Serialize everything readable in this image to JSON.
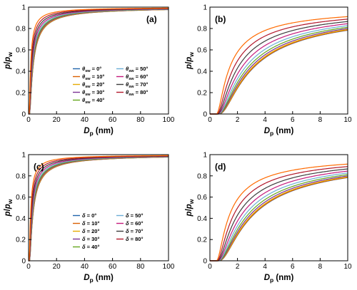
{
  "chart_data": [
    {
      "panel": "(a)",
      "type": "line",
      "xlabel": {
        "main": "D",
        "sub": "p",
        "unit": " (nm)"
      },
      "ylabel": {
        "p1": "p",
        "slash": "/",
        "p2": "p",
        "sub": "w"
      },
      "xlim": [
        0,
        100
      ],
      "ylim": [
        0,
        1
      ],
      "xticks": [
        "0",
        "20",
        "40",
        "60",
        "80",
        "100"
      ],
      "yticks": [
        "0",
        "0.2",
        "0.4",
        "0.6",
        "0.8",
        "1"
      ],
      "legend": {
        "symbol": "θ",
        "sub": "sw",
        "placement": "lower-right"
      },
      "series": [
        {
          "name": " = 0°",
          "color": "#2166ac",
          "factor": 1.0
        },
        {
          "name": " = 10°",
          "color": "#d95f02",
          "factor": 0.985
        },
        {
          "name": " = 20°",
          "color": "#e6ab02",
          "factor": 0.94
        },
        {
          "name": " = 30°",
          "color": "#7b3294",
          "factor": 0.866
        },
        {
          "name": " = 40°",
          "color": "#66a61e",
          "factor": 0.766
        },
        {
          "name": " = 50°",
          "color": "#6baed6",
          "factor": 0.643
        },
        {
          "name": " = 60°",
          "color": "#c51b7d",
          "factor": 0.5
        },
        {
          "name": " = 70°",
          "color": "#3d3d3d",
          "factor": 0.342
        },
        {
          "name": " = 80°",
          "color": "#b2182b",
          "factor": 0.174
        },
        {
          "name": "",
          "color": "#ff6a00",
          "factor": 0.0,
          "legend": false
        }
      ]
    },
    {
      "panel": "(b)",
      "type": "line",
      "xlabel": {
        "main": "D",
        "sub": "p",
        "unit": " (nm)"
      },
      "ylabel": {
        "p1": "p",
        "slash": "/",
        "p2": "p",
        "sub": "w"
      },
      "xlim": [
        0,
        10
      ],
      "ylim": [
        0,
        1
      ],
      "xticks": [
        "0",
        "2",
        "4",
        "6",
        "8",
        "10"
      ],
      "yticks": [
        "0",
        "0.2",
        "0.4",
        "0.6",
        "0.8",
        "1"
      ],
      "series_from": "(a)"
    },
    {
      "panel": "(c)",
      "type": "line",
      "xlabel": {
        "main": "D",
        "sub": "p",
        "unit": " (nm)"
      },
      "ylabel": {
        "p1": "p",
        "slash": "/",
        "p2": "p",
        "sub": "w"
      },
      "xlim": [
        0,
        100
      ],
      "ylim": [
        0,
        1
      ],
      "xticks": [
        "0",
        "20",
        "40",
        "60",
        "80",
        "100"
      ],
      "yticks": [
        "0",
        "0.2",
        "0.4",
        "0.6",
        "0.8",
        "1"
      ],
      "legend": {
        "symbol": "δ",
        "sub": "",
        "placement": "lower-right"
      },
      "series": [
        {
          "name": " = 0°",
          "color": "#2166ac",
          "factor": 1.0
        },
        {
          "name": " = 10°",
          "color": "#d95f02",
          "factor": 0.985
        },
        {
          "name": " = 20°",
          "color": "#e6ab02",
          "factor": 0.94
        },
        {
          "name": " = 30°",
          "color": "#7b3294",
          "factor": 0.866
        },
        {
          "name": " = 40°",
          "color": "#66a61e",
          "factor": 0.766
        },
        {
          "name": " = 50°",
          "color": "#6baed6",
          "factor": 0.643
        },
        {
          "name": " = 60°",
          "color": "#c51b7d",
          "factor": 0.5
        },
        {
          "name": " = 70°",
          "color": "#3d3d3d",
          "factor": 0.342
        },
        {
          "name": " = 80°",
          "color": "#b2182b",
          "factor": 0.174
        },
        {
          "name": "",
          "color": "#ff6a00",
          "factor": 0.0,
          "legend": false
        }
      ]
    },
    {
      "panel": "(d)",
      "type": "line",
      "xlabel": {
        "main": "D",
        "sub": "p",
        "unit": " (nm)"
      },
      "ylabel": {
        "p1": "p",
        "slash": "/",
        "p2": "p",
        "sub": "w"
      },
      "xlim": [
        0,
        10
      ],
      "ylim": [
        0,
        1
      ],
      "xticks": [
        "0",
        "2",
        "4",
        "6",
        "8",
        "10"
      ],
      "yticks": [
        "0",
        "0.2",
        "0.4",
        "0.6",
        "0.8",
        "1"
      ],
      "series_from": "(c)"
    }
  ]
}
